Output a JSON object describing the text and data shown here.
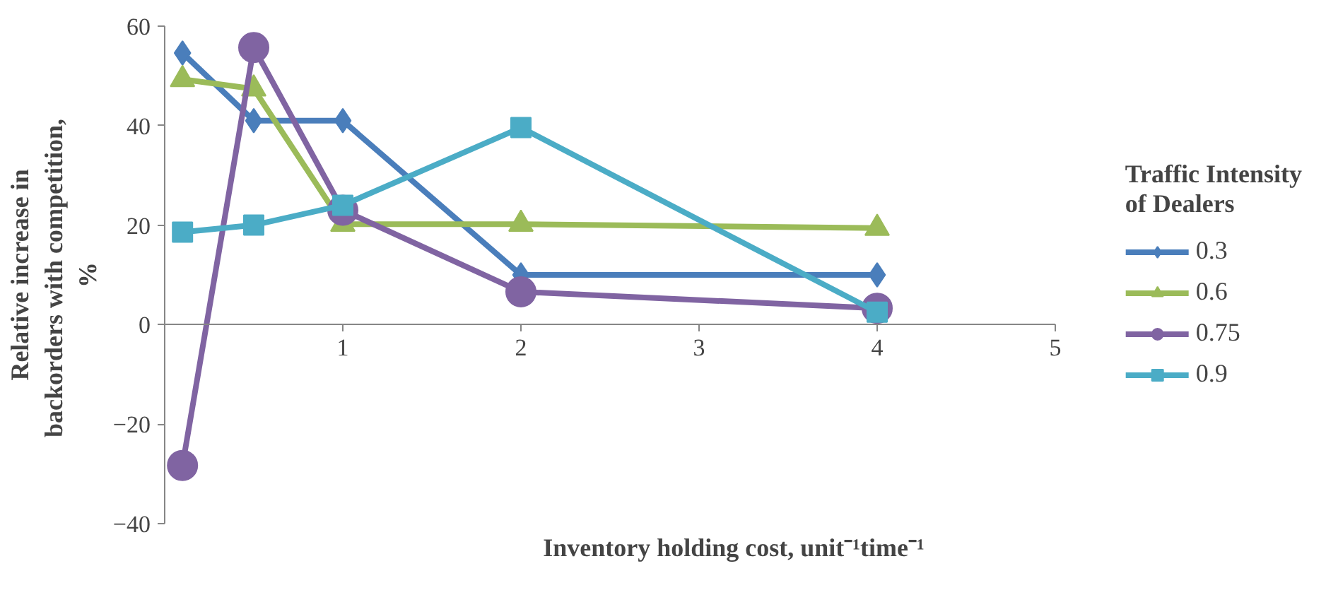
{
  "chart_data": {
    "type": "line",
    "xlabel": "Inventory holding cost, unit⁻¹time⁻¹",
    "ylabel": "Relative increase in\nbackorders  with competition,\n%",
    "legend_title": "Traffic Intensity\nof Dealers",
    "legend": "right",
    "grid": false,
    "line_style": "solid",
    "xlim": [
      0,
      5
    ],
    "xticks": [
      1,
      2,
      3,
      4,
      5
    ],
    "ylim": [
      -40,
      60
    ],
    "yticks": [
      -40,
      -20,
      0,
      20,
      40,
      60
    ],
    "series": [
      {
        "name": "0.3",
        "color": "#4a7ebb",
        "marker": "diamond",
        "x": [
          0.1,
          0.5,
          1,
          2,
          4
        ],
        "values": [
          54.6,
          41,
          41,
          10,
          10
        ]
      },
      {
        "name": "0.6",
        "color": "#9bbb59",
        "marker": "triangle",
        "x": [
          0.1,
          0.5,
          1,
          2,
          4
        ],
        "values": [
          49.3,
          47.4,
          20.2,
          20.2,
          19.4
        ]
      },
      {
        "name": "0.75",
        "color": "#8064a2",
        "marker": "circle",
        "x": [
          0.1,
          0.5,
          1,
          2,
          4
        ],
        "values": [
          -28.3,
          55.7,
          23,
          6.6,
          3.3
        ]
      },
      {
        "name": "0.9",
        "color": "#4bacc6",
        "marker": "square",
        "x": [
          0.1,
          0.5,
          1,
          2,
          4
        ],
        "values": [
          18.6,
          20,
          24,
          39.6,
          2.5
        ]
      }
    ]
  }
}
